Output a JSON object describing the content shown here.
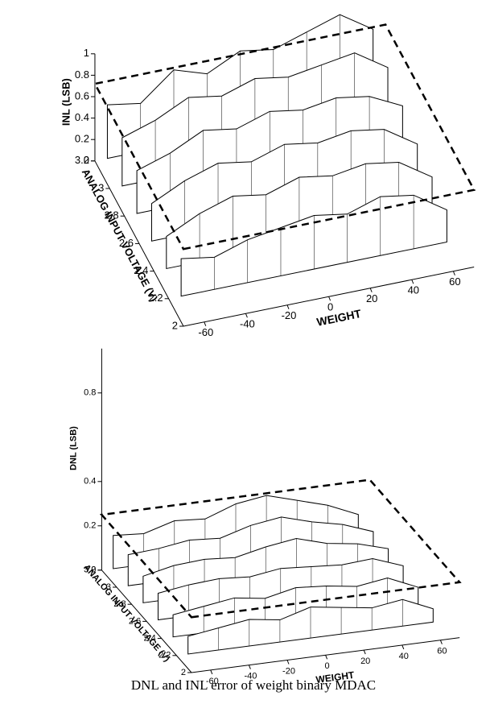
{
  "chart_data": [
    {
      "type": "surface3d",
      "xlabel": "WEIGHT",
      "ylabel": "ANALOG INPUT VOLTAGE (V)",
      "zlabel": "INL (LSB)",
      "xlim": [
        -70,
        70
      ],
      "xticks": [
        -60,
        -40,
        -20,
        0,
        20,
        40,
        60
      ],
      "ylim": [
        2,
        3.2
      ],
      "yticks": [
        2,
        2.2,
        2.4,
        2.6,
        2.8,
        3,
        3.2
      ],
      "zlim": [
        0,
        1
      ],
      "zticks": [
        0,
        0.2,
        0.4,
        0.6,
        0.8,
        1
      ],
      "reference_plane": 0.72,
      "x": [
        -64,
        -48,
        -32,
        -16,
        0,
        16,
        32,
        48,
        64
      ],
      "series": [
        {
          "name": "2.2",
          "values": [
            0.35,
            0.3,
            0.4,
            0.45,
            0.5,
            0.45,
            0.55,
            0.5,
            0.3
          ]
        },
        {
          "name": "2.4",
          "values": [
            0.3,
            0.45,
            0.55,
            0.5,
            0.6,
            0.55,
            0.6,
            0.55,
            0.35
          ]
        },
        {
          "name": "2.6",
          "values": [
            0.35,
            0.5,
            0.6,
            0.55,
            0.65,
            0.6,
            0.65,
            0.6,
            0.4
          ]
        },
        {
          "name": "2.8",
          "values": [
            0.4,
            0.5,
            0.65,
            0.6,
            0.7,
            0.65,
            0.7,
            0.65,
            0.5
          ]
        },
        {
          "name": "3.0",
          "values": [
            0.45,
            0.55,
            0.7,
            0.65,
            0.75,
            0.7,
            0.75,
            0.8,
            0.6
          ]
        },
        {
          "name": "3.2",
          "values": [
            0.5,
            0.45,
            0.7,
            0.6,
            0.75,
            0.7,
            0.8,
            0.9,
            0.7
          ]
        }
      ]
    },
    {
      "type": "surface3d",
      "xlabel": "WEIGHT",
      "ylabel": "ANALOG INPUT VOLTAGE (V)",
      "zlabel": "DNL (LSB)",
      "xlim": [
        -70,
        70
      ],
      "xticks": [
        -60,
        -40,
        -20,
        0,
        20,
        40,
        60
      ],
      "ylim": [
        2,
        3.2
      ],
      "yticks": [
        2,
        2.2,
        2.4,
        2.6,
        2.8,
        3,
        3.2
      ],
      "zlim": [
        0,
        1
      ],
      "zticks": [
        0,
        0.2,
        0.4,
        0.8
      ],
      "reference_plane": 0.25,
      "x": [
        -64,
        -48,
        -32,
        -16,
        0,
        16,
        32,
        48,
        64
      ],
      "series": [
        {
          "name": "2.2",
          "values": [
            0.08,
            0.1,
            0.12,
            0.1,
            0.14,
            0.12,
            0.1,
            0.12,
            0.06
          ]
        },
        {
          "name": "2.4",
          "values": [
            0.1,
            0.12,
            0.14,
            0.12,
            0.15,
            0.14,
            0.12,
            0.14,
            0.08
          ]
        },
        {
          "name": "2.6",
          "values": [
            0.12,
            0.14,
            0.15,
            0.14,
            0.16,
            0.15,
            0.14,
            0.15,
            0.1
          ]
        },
        {
          "name": "2.8",
          "values": [
            0.12,
            0.15,
            0.16,
            0.15,
            0.18,
            0.2,
            0.16,
            0.14,
            0.1
          ]
        },
        {
          "name": "3.0",
          "values": [
            0.14,
            0.15,
            0.17,
            0.16,
            0.2,
            0.22,
            0.18,
            0.15,
            0.1
          ]
        },
        {
          "name": "3.2",
          "values": [
            0.15,
            0.14,
            0.18,
            0.17,
            0.22,
            0.24,
            0.2,
            0.16,
            0.1
          ]
        }
      ]
    }
  ],
  "caption": "DNL and INL error of weight binary    MDAC"
}
